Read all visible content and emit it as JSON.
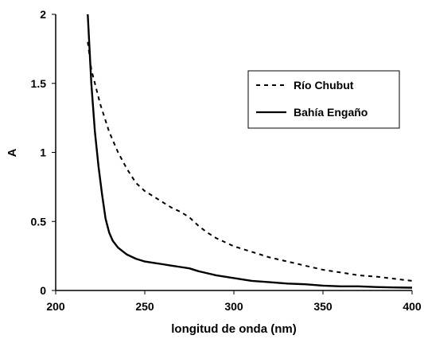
{
  "chart_data": {
    "type": "line",
    "title": "",
    "xlabel": "longitud de onda (nm)",
    "ylabel": "A",
    "xlim": [
      200,
      400
    ],
    "ylim": [
      0,
      2
    ],
    "x_ticks": [
      "200",
      "250",
      "300",
      "350",
      "400"
    ],
    "y_ticks": [
      "0",
      "0.5",
      "1",
      "1.5",
      "2"
    ],
    "grid": false,
    "legend_position": "top-right",
    "series": [
      {
        "name": "Río Chubut",
        "style": "dashed",
        "color": "#000000",
        "points": [
          [
            218,
            1.8
          ],
          [
            220,
            1.6
          ],
          [
            225,
            1.35
          ],
          [
            230,
            1.15
          ],
          [
            235,
            1.0
          ],
          [
            240,
            0.88
          ],
          [
            245,
            0.78
          ],
          [
            250,
            0.72
          ],
          [
            255,
            0.68
          ],
          [
            260,
            0.64
          ],
          [
            265,
            0.6
          ],
          [
            270,
            0.57
          ],
          [
            275,
            0.53
          ],
          [
            280,
            0.47
          ],
          [
            285,
            0.42
          ],
          [
            290,
            0.38
          ],
          [
            300,
            0.32
          ],
          [
            310,
            0.28
          ],
          [
            320,
            0.24
          ],
          [
            330,
            0.21
          ],
          [
            340,
            0.18
          ],
          [
            350,
            0.15
          ],
          [
            360,
            0.13
          ],
          [
            370,
            0.11
          ],
          [
            380,
            0.1
          ],
          [
            390,
            0.085
          ],
          [
            400,
            0.07
          ]
        ]
      },
      {
        "name": "Bahía Engaño",
        "style": "solid",
        "color": "#000000",
        "points": [
          [
            218,
            2.0
          ],
          [
            220,
            1.5
          ],
          [
            222,
            1.15
          ],
          [
            224,
            0.9
          ],
          [
            226,
            0.7
          ],
          [
            228,
            0.52
          ],
          [
            230,
            0.42
          ],
          [
            232,
            0.36
          ],
          [
            235,
            0.31
          ],
          [
            240,
            0.26
          ],
          [
            245,
            0.23
          ],
          [
            250,
            0.21
          ],
          [
            255,
            0.2
          ],
          [
            260,
            0.19
          ],
          [
            265,
            0.18
          ],
          [
            270,
            0.17
          ],
          [
            275,
            0.16
          ],
          [
            280,
            0.14
          ],
          [
            290,
            0.11
          ],
          [
            300,
            0.09
          ],
          [
            310,
            0.07
          ],
          [
            320,
            0.06
          ],
          [
            330,
            0.05
          ],
          [
            340,
            0.045
          ],
          [
            350,
            0.035
          ],
          [
            360,
            0.03
          ],
          [
            370,
            0.03
          ],
          [
            380,
            0.025
          ],
          [
            390,
            0.022
          ],
          [
            400,
            0.02
          ]
        ]
      }
    ]
  }
}
